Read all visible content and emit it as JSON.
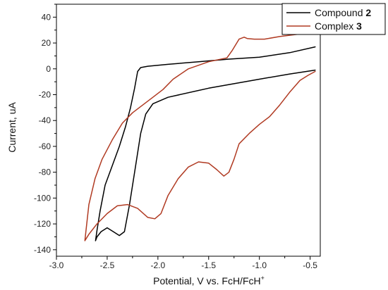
{
  "chart_data": {
    "type": "line",
    "title": "",
    "xlabel": {
      "text": "Potential, V vs. FcH/FcH",
      "sup": "+"
    },
    "ylabel": "Current, uA",
    "xlim": [
      -3.0,
      -0.4
    ],
    "ylim": [
      -145,
      50
    ],
    "xticks": [
      -3.0,
      -2.5,
      -2.0,
      -1.5,
      -1.0,
      -0.5
    ],
    "xtick_labels": [
      "-3.0",
      "-2.5",
      "-2.0",
      "-1.5",
      "-1.0",
      "-0.5"
    ],
    "yticks": [
      -140,
      -120,
      -100,
      -80,
      -60,
      -40,
      -20,
      0,
      20,
      40
    ],
    "ytick_labels": [
      "-140",
      "-120",
      "-100",
      "-80",
      "-60",
      "-40",
      "-20",
      "0",
      "20",
      "40"
    ],
    "grid": false,
    "legend_position": "top-right",
    "series": [
      {
        "name": "Compound 2",
        "legend": {
          "text": "Compound ",
          "bold": "2"
        },
        "color": "#000000",
        "points": [
          [
            -0.45,
            17
          ],
          [
            -0.7,
            12.5
          ],
          [
            -1.0,
            9
          ],
          [
            -1.3,
            7.5
          ],
          [
            -1.6,
            5.5
          ],
          [
            -1.9,
            3.5
          ],
          [
            -2.1,
            2
          ],
          [
            -2.17,
            1
          ],
          [
            -2.2,
            -2
          ],
          [
            -2.23,
            -15
          ],
          [
            -2.27,
            -30
          ],
          [
            -2.32,
            -45
          ],
          [
            -2.38,
            -60
          ],
          [
            -2.45,
            -75
          ],
          [
            -2.52,
            -90
          ],
          [
            -2.57,
            -110
          ],
          [
            -2.6,
            -125
          ],
          [
            -2.615,
            -133
          ],
          [
            -2.6,
            -130
          ],
          [
            -2.56,
            -126
          ],
          [
            -2.5,
            -123
          ],
          [
            -2.44,
            -126
          ],
          [
            -2.38,
            -129
          ],
          [
            -2.33,
            -126
          ],
          [
            -2.28,
            -105
          ],
          [
            -2.23,
            -80
          ],
          [
            -2.17,
            -50
          ],
          [
            -2.12,
            -35
          ],
          [
            -2.05,
            -27
          ],
          [
            -1.9,
            -22
          ],
          [
            -1.5,
            -15
          ],
          [
            -1.0,
            -8
          ],
          [
            -0.7,
            -4
          ],
          [
            -0.45,
            -1
          ]
        ]
      },
      {
        "name": "Complex 3",
        "legend": {
          "text": "Complex ",
          "bold": "3"
        },
        "color": "#b03a22",
        "points": [
          [
            -0.45,
            27.5
          ],
          [
            -0.6,
            27
          ],
          [
            -0.8,
            25
          ],
          [
            -0.95,
            23
          ],
          [
            -1.05,
            23
          ],
          [
            -1.12,
            23.5
          ],
          [
            -1.15,
            24.5
          ],
          [
            -1.2,
            23
          ],
          [
            -1.27,
            14
          ],
          [
            -1.32,
            8.5
          ],
          [
            -1.5,
            5.5
          ],
          [
            -1.7,
            0
          ],
          [
            -1.85,
            -8
          ],
          [
            -1.95,
            -16
          ],
          [
            -2.05,
            -22
          ],
          [
            -2.15,
            -28
          ],
          [
            -2.25,
            -34
          ],
          [
            -2.35,
            -42
          ],
          [
            -2.45,
            -55
          ],
          [
            -2.55,
            -70
          ],
          [
            -2.62,
            -85
          ],
          [
            -2.68,
            -105
          ],
          [
            -2.72,
            -133
          ],
          [
            -2.68,
            -128
          ],
          [
            -2.6,
            -120
          ],
          [
            -2.5,
            -112
          ],
          [
            -2.4,
            -106
          ],
          [
            -2.3,
            -105
          ],
          [
            -2.2,
            -108
          ],
          [
            -2.1,
            -115
          ],
          [
            -2.03,
            -116
          ],
          [
            -1.97,
            -112
          ],
          [
            -1.9,
            -98
          ],
          [
            -1.8,
            -85
          ],
          [
            -1.7,
            -76
          ],
          [
            -1.6,
            -72
          ],
          [
            -1.5,
            -73
          ],
          [
            -1.42,
            -78
          ],
          [
            -1.35,
            -83
          ],
          [
            -1.3,
            -80
          ],
          [
            -1.25,
            -70
          ],
          [
            -1.2,
            -58
          ],
          [
            -1.1,
            -50
          ],
          [
            -1.0,
            -43
          ],
          [
            -0.9,
            -37
          ],
          [
            -0.8,
            -28
          ],
          [
            -0.7,
            -18
          ],
          [
            -0.6,
            -9
          ],
          [
            -0.52,
            -5
          ],
          [
            -0.45,
            -2
          ]
        ]
      }
    ]
  }
}
